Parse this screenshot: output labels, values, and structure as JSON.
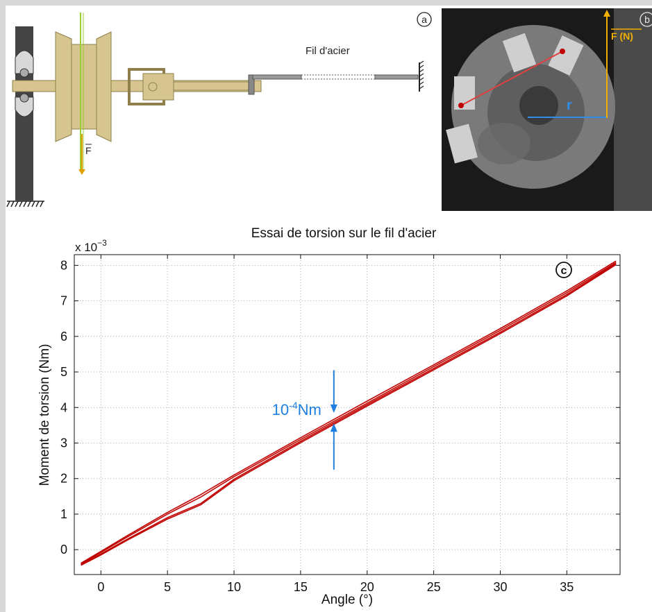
{
  "panel_a": {
    "marker": "a",
    "wire_label": "Fil d'acier",
    "force_label": "F"
  },
  "panel_b": {
    "marker": "b",
    "force_label": "F (N)",
    "radius_label": "r"
  },
  "chart_data": {
    "type": "line",
    "marker": "c",
    "title": "Essai de torsion sur le fil d'acier",
    "xlabel": "Angle (°)",
    "ylabel": "Moment de torsion (Nm)",
    "y_multiplier": "x 10",
    "y_multiplier_exp": "−3",
    "xlim": [
      -2,
      39
    ],
    "ylim": [
      -0.7,
      8.3
    ],
    "xticks": [
      0,
      5,
      10,
      15,
      20,
      25,
      30,
      35
    ],
    "yticks": [
      0,
      1,
      2,
      3,
      4,
      5,
      6,
      7,
      8
    ],
    "grid": true,
    "color": "#c00000",
    "annotation": {
      "text_base": "10",
      "text_exp": "-4",
      "text_unit": "Nm",
      "x": 17.5,
      "y_low": 3.55,
      "y_high": 3.85,
      "color": "#1f7fe0"
    },
    "series": [
      {
        "x": [
          -1.5,
          0,
          2,
          5,
          7.5,
          10,
          15,
          20,
          25,
          30,
          35,
          38.7
        ],
        "y": [
          -0.38,
          -0.05,
          0.4,
          1.05,
          1.55,
          2.1,
          3.15,
          4.18,
          5.2,
          6.22,
          7.28,
          8.12
        ]
      },
      {
        "x": [
          38.7,
          35,
          30,
          25,
          20,
          15,
          10,
          7.5,
          5,
          2,
          0,
          -1.5
        ],
        "y": [
          8.05,
          7.18,
          6.12,
          5.1,
          4.08,
          3.05,
          1.98,
          1.3,
          0.9,
          0.3,
          -0.12,
          -0.42
        ]
      },
      {
        "x": [
          -1.5,
          0,
          2,
          5,
          7.5,
          10,
          15,
          20,
          25,
          30,
          35,
          38.7
        ],
        "y": [
          -0.4,
          -0.08,
          0.36,
          1.0,
          1.48,
          2.05,
          3.1,
          4.12,
          5.15,
          6.17,
          7.23,
          8.08
        ]
      },
      {
        "x": [
          38.7,
          35,
          30,
          25,
          20,
          15,
          10,
          7.5,
          5,
          2,
          0,
          -1.5
        ],
        "y": [
          8.02,
          7.14,
          6.08,
          5.06,
          4.04,
          3.01,
          1.94,
          1.26,
          0.86,
          0.27,
          -0.15,
          -0.44
        ]
      }
    ]
  }
}
